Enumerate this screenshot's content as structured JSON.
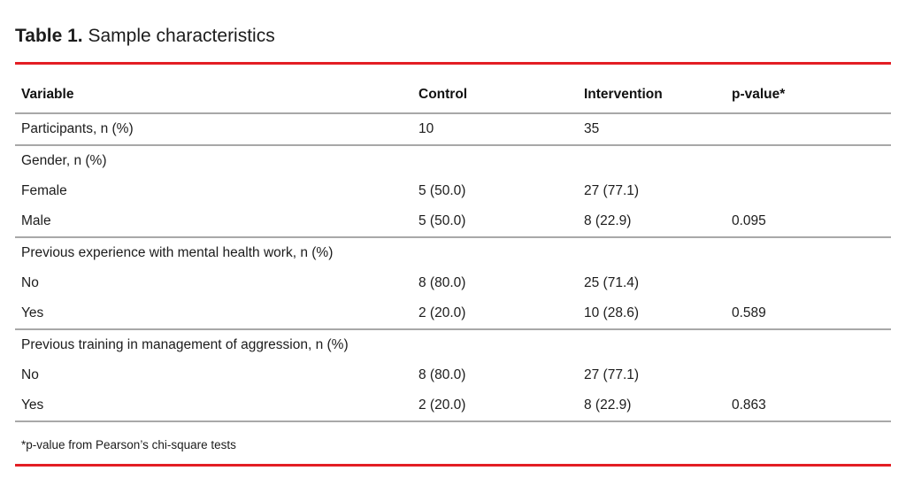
{
  "title": {
    "label": "Table 1.",
    "text": "Sample characteristics"
  },
  "table": {
    "columns": [
      "Variable",
      "Control",
      "Intervention",
      "p-value*"
    ],
    "sections": [
      {
        "header": "",
        "rows": [
          {
            "variable": "Participants, n (%)",
            "control": "10",
            "intervention": "35",
            "p_value": ""
          }
        ]
      },
      {
        "header": "Gender, n (%)",
        "rows": [
          {
            "variable": "Female",
            "control": "5 (50.0)",
            "intervention": "27 (77.1)",
            "p_value": ""
          },
          {
            "variable": "Male",
            "control": "5 (50.0)",
            "intervention": "8 (22.9)",
            "p_value": "0.095"
          }
        ]
      },
      {
        "header": "Previous experience with mental health work, n (%)",
        "rows": [
          {
            "variable": "No",
            "control": "8 (80.0)",
            "intervention": "25 (71.4)",
            "p_value": ""
          },
          {
            "variable": "Yes",
            "control": "2 (20.0)",
            "intervention": "10 (28.6)",
            "p_value": "0.589"
          }
        ]
      },
      {
        "header": "Previous training in management of aggression, n (%)",
        "rows": [
          {
            "variable": "No",
            "control": "8 (80.0)",
            "intervention": "27 (77.1)",
            "p_value": ""
          },
          {
            "variable": "Yes",
            "control": "2 (20.0)",
            "intervention": "8 (22.9)",
            "p_value": "0.863"
          }
        ]
      }
    ],
    "footnote": "*p-value from Pearson’s chi-square tests"
  },
  "colors": {
    "accent_red": "#e31e24",
    "divider_gray": "#a8a8a8",
    "text": "#1c1c1c"
  }
}
